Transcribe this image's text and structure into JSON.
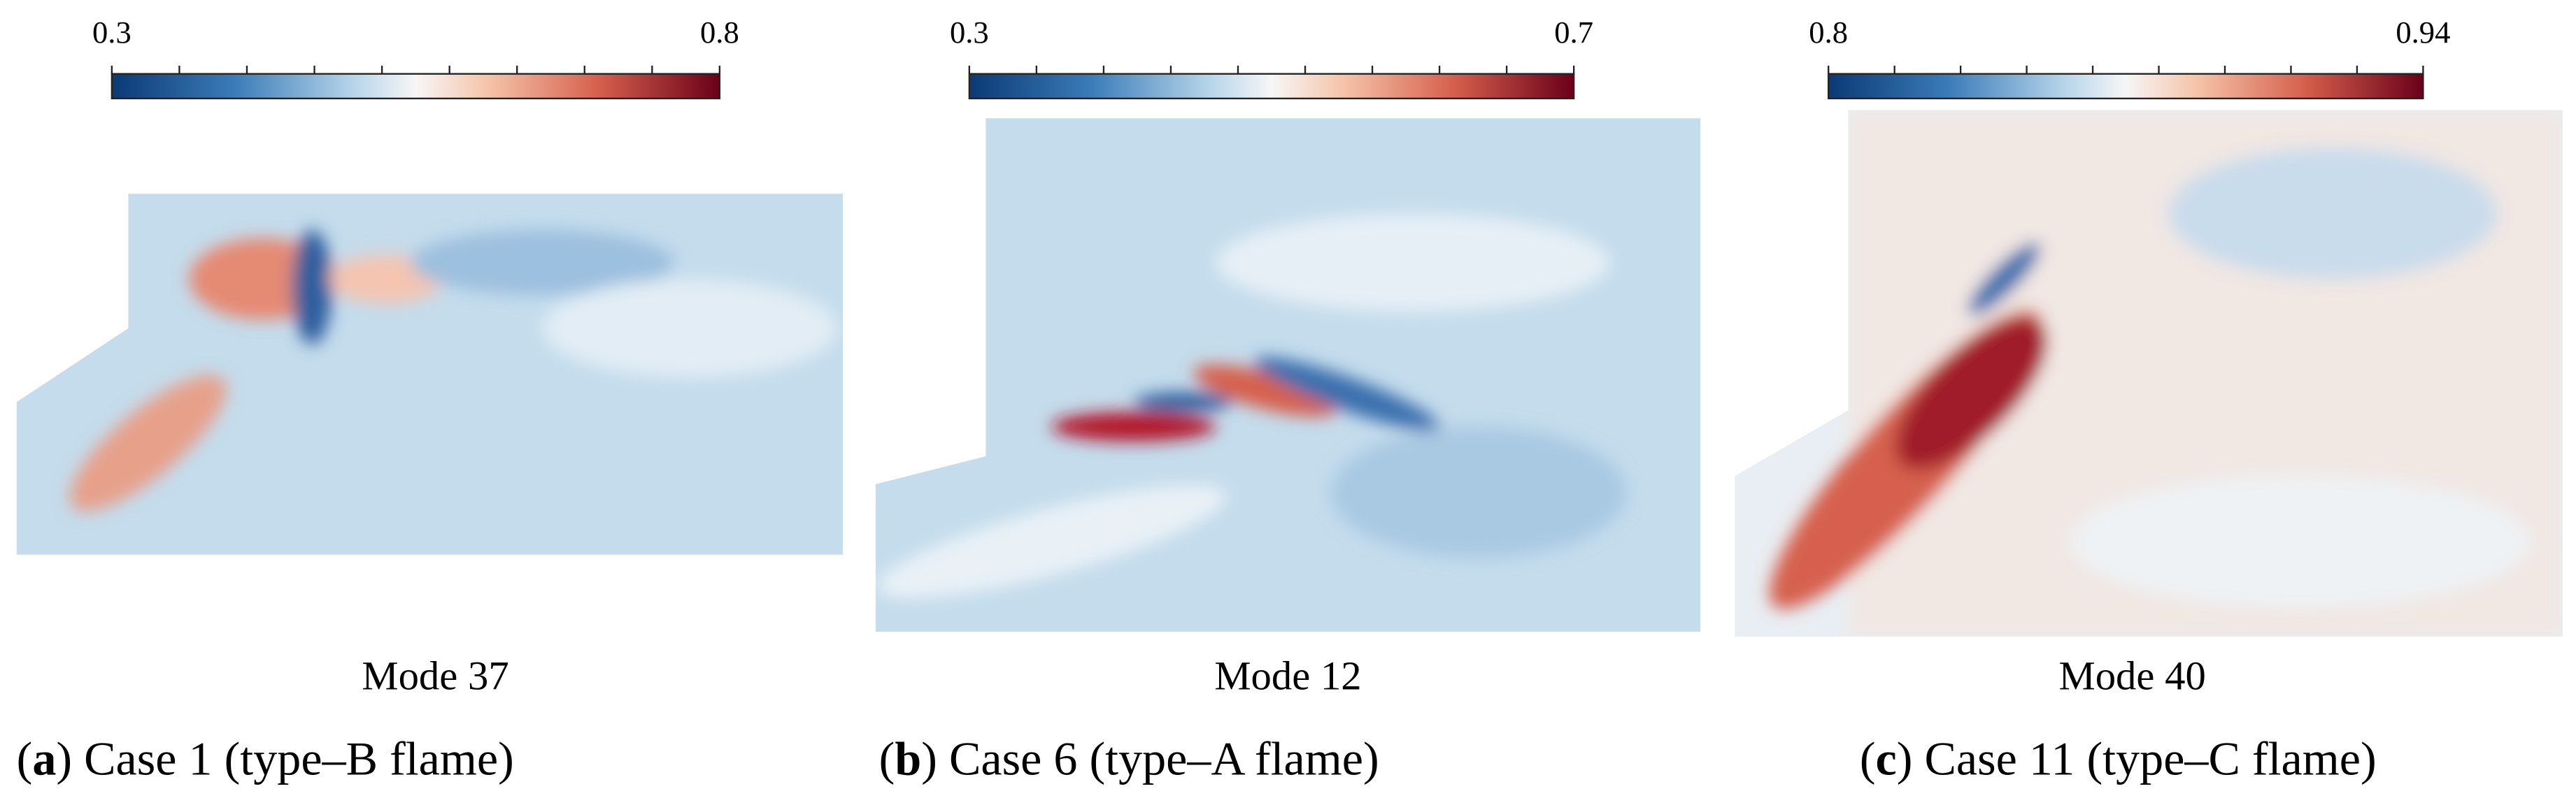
{
  "panels": [
    {
      "colorbar": {
        "min": 0.3,
        "max": 0.8
      },
      "mode": "Mode 37",
      "caption": {
        "open": "(",
        "label": "a",
        "text": ") Case 1 (type–B flame)"
      }
    },
    {
      "colorbar": {
        "min": 0.3,
        "max": 0.7
      },
      "mode": "Mode 12",
      "caption": {
        "open": "(",
        "label": "b",
        "text": ") Case 6 (type–A flame)"
      }
    },
    {
      "colorbar": {
        "min": 0.8,
        "max": 0.94
      },
      "mode": "Mode 40",
      "caption": {
        "open": "(",
        "label": "c",
        "text": ") Case 11 (type–C flame)"
      }
    }
  ]
}
